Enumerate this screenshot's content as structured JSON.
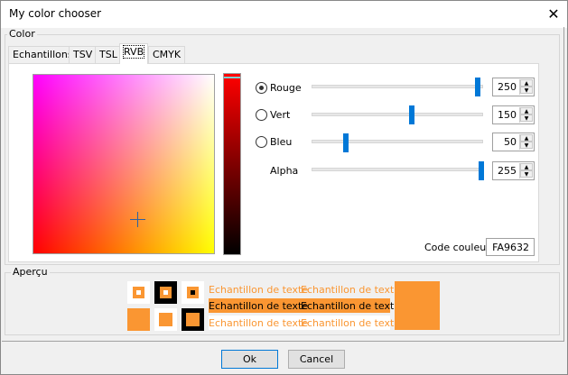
{
  "window": {
    "title": "My color chooser"
  },
  "color_group": {
    "label": "Color"
  },
  "tabs": [
    {
      "label": "Echantillons"
    },
    {
      "label": "TSV"
    },
    {
      "label": "TSL"
    },
    {
      "label": "RVB",
      "active": true
    },
    {
      "label": "CMYK"
    }
  ],
  "channels": [
    {
      "label": "Rouge",
      "value": "250",
      "fraction": 0.98,
      "selected": true
    },
    {
      "label": "Vert",
      "value": "150",
      "fraction": 0.59,
      "selected": false
    },
    {
      "label": "Bleu",
      "value": "50",
      "fraction": 0.2,
      "selected": false
    },
    {
      "label": "Alpha",
      "value": "255",
      "fraction": 1.0
    }
  ],
  "code": {
    "label": "Code couleur",
    "value": "FA9632"
  },
  "preview": {
    "label": "Aperçu",
    "sample_text": "Echantillon de texte",
    "color": "#fa9632"
  },
  "buttons": {
    "ok": "Ok",
    "cancel": "Cancel"
  }
}
